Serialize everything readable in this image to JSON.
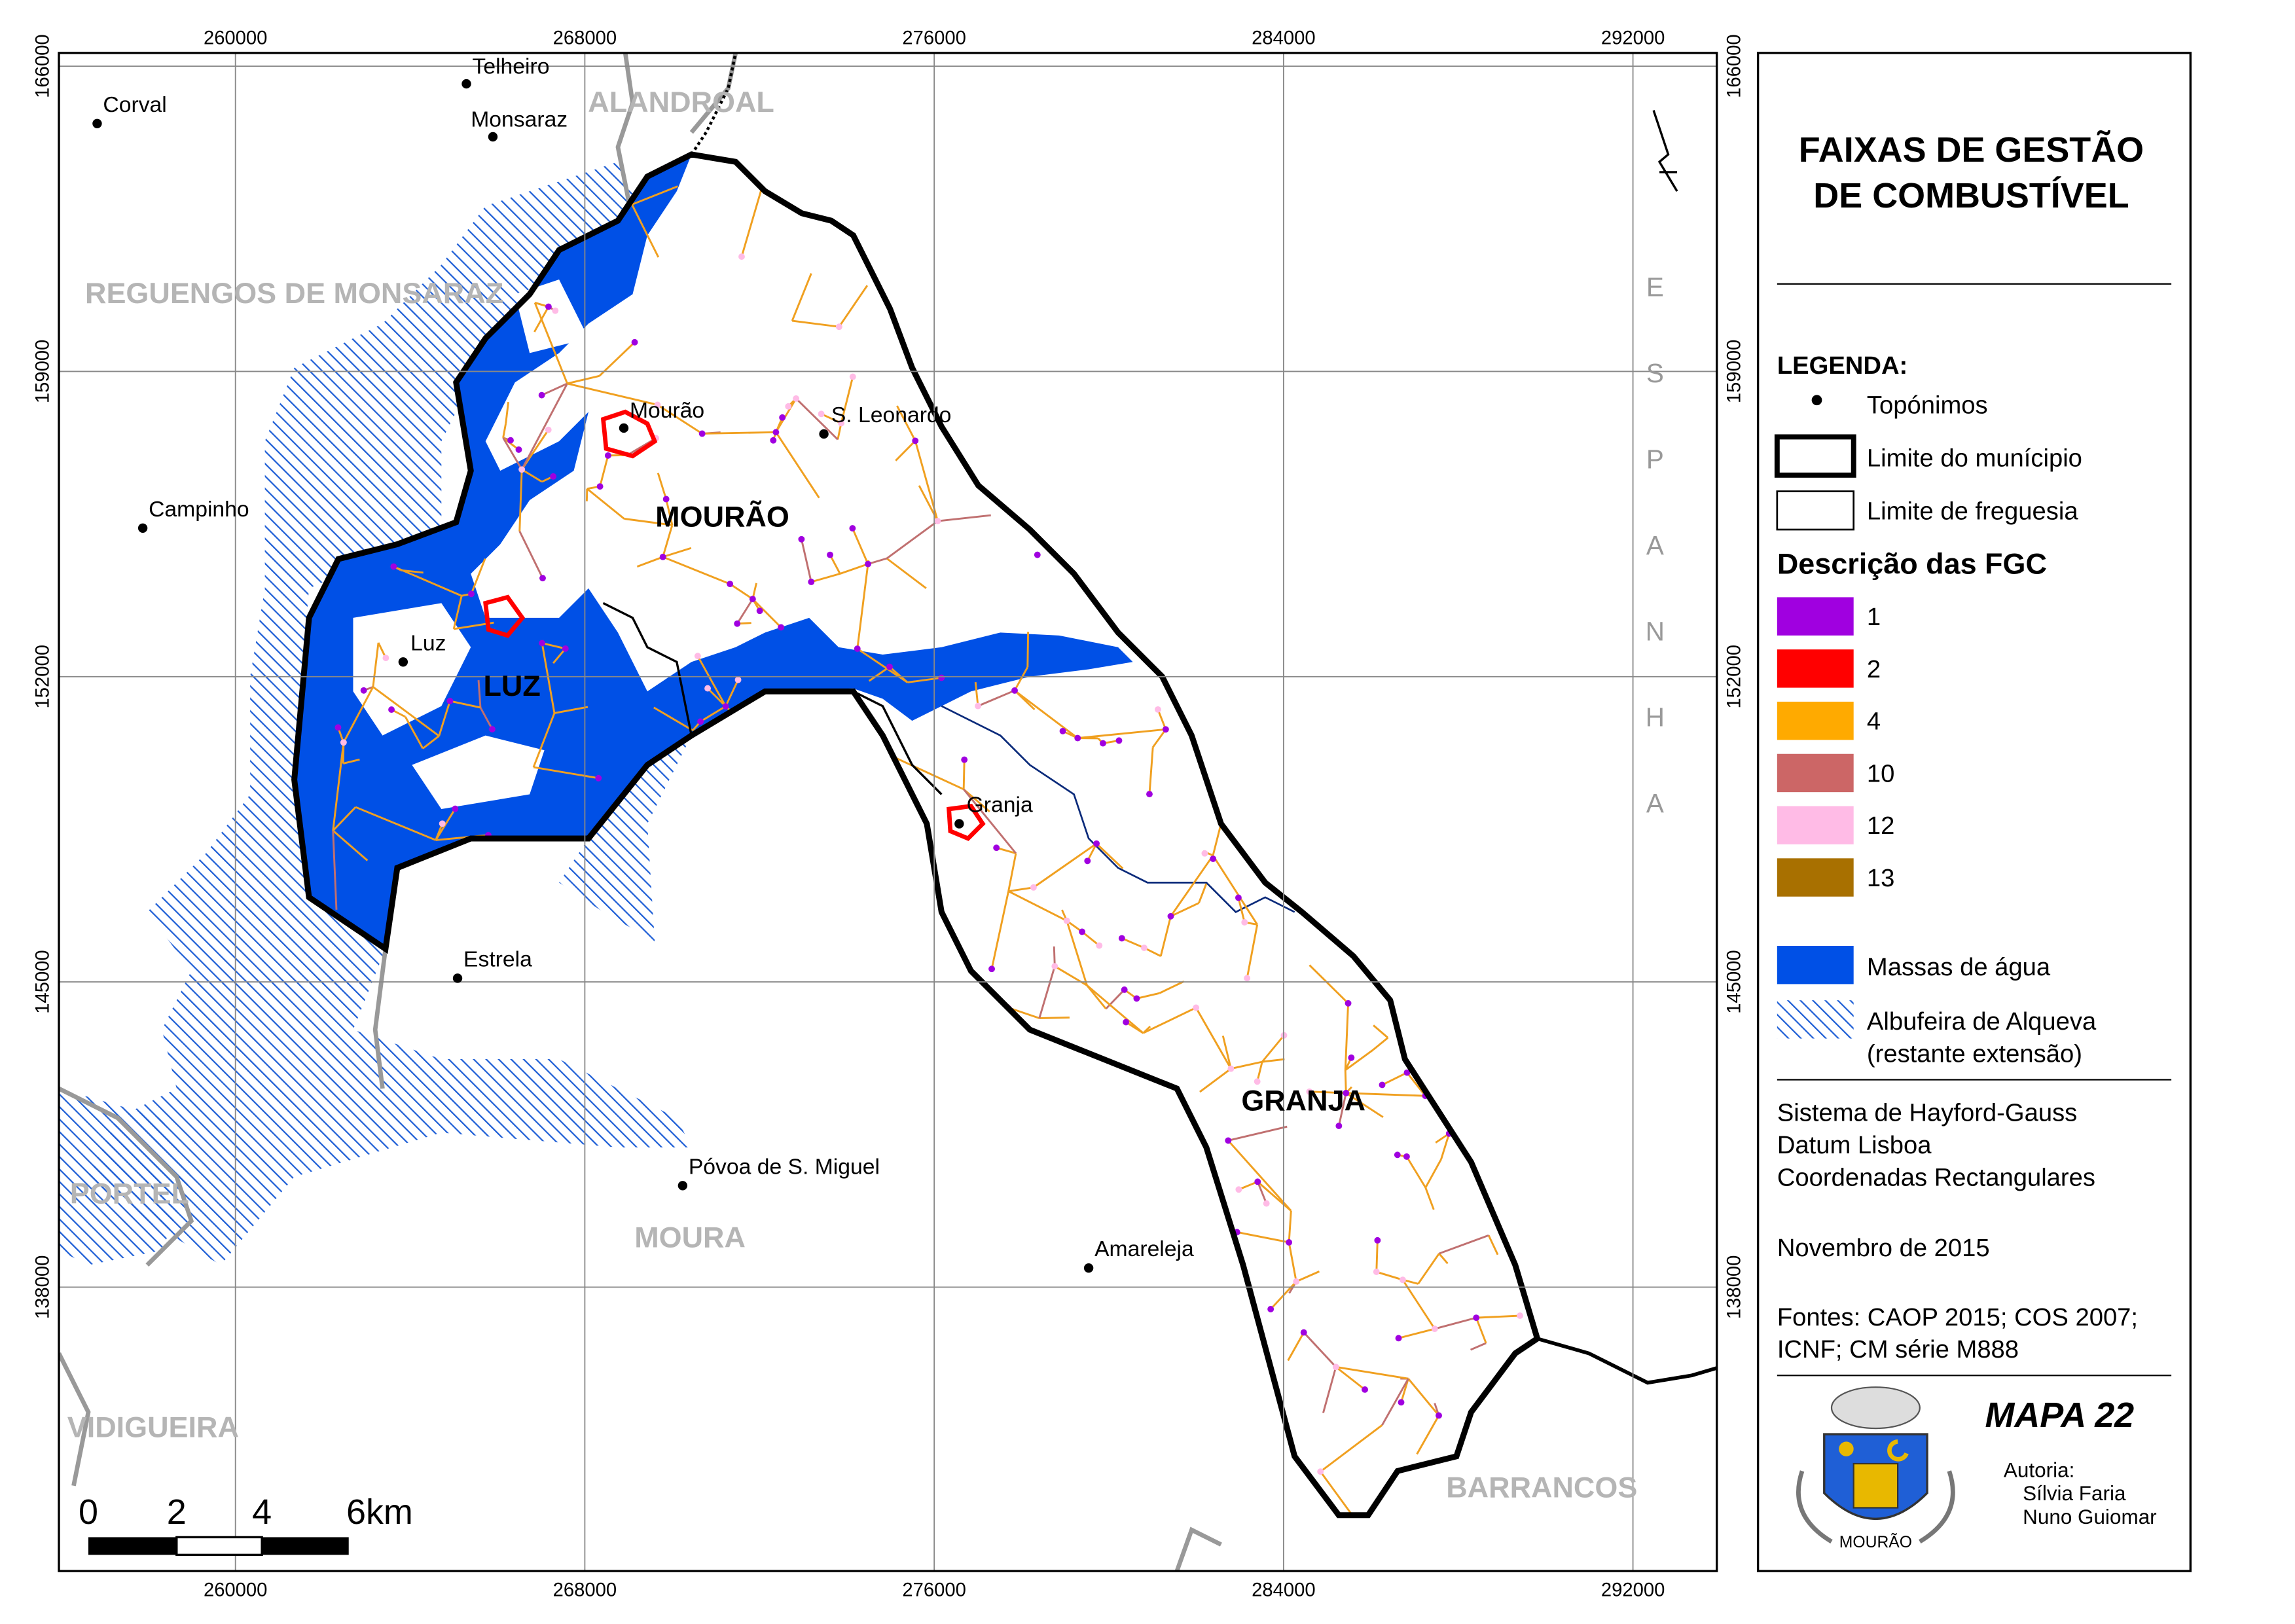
{
  "map": {
    "grid": {
      "x_ticks": [
        260000,
        268000,
        276000,
        284000,
        292000
      ],
      "y_ticks": [
        166000,
        159000,
        152000,
        145000,
        138000
      ]
    },
    "places": [
      "Corval",
      "Telheiro",
      "Monsaraz",
      "Mourão",
      "S. Leonardo",
      "Campinho",
      "Luz",
      "Granja",
      "Estrela",
      "Póvoa de S. Miguel",
      "Amareleja"
    ],
    "regions": [
      "ALANDROAL",
      "REGUENGOS DE MONSARAZ",
      "PORTEL",
      "VIDIGUEIRA",
      "MOURA",
      "BARRANCOS"
    ],
    "parishes": [
      "MOURÃO",
      "LUZ",
      "GRANJA"
    ],
    "country": "ESPANHA",
    "scale_bar": [
      "0",
      "2",
      "4",
      "6km"
    ]
  },
  "legend": {
    "title": [
      "FAIXAS DE GESTÃO",
      "DE COMBUSTÍVEL"
    ],
    "heading": "LEGENDA:",
    "symbols": [
      "Topónimos",
      "Limite do munícipio",
      "Limite de freguesia"
    ],
    "fgc_heading": "Descrição das FGC",
    "fgc": [
      {
        "label": "1",
        "color": "#a000e0"
      },
      {
        "label": "2",
        "color": "#ff0000"
      },
      {
        "label": "4",
        "color": "#ffaa00"
      },
      {
        "label": "10",
        "color": "#cc6666"
      },
      {
        "label": "12",
        "color": "#ffbbe6"
      },
      {
        "label": "13",
        "color": "#a87000"
      }
    ],
    "water": {
      "label": "Massas de água",
      "color": "#0050e6"
    },
    "reservoir": [
      "Albufeira de Alqueva",
      "(restante extensão)"
    ],
    "projection": [
      "Sistema de Hayford-Gauss",
      "Datum Lisboa",
      "Coordenadas Rectangulares"
    ],
    "date": "Novembro de 2015",
    "sources": [
      "Fontes: CAOP 2015; COS 2007;",
      "ICNF; CM série M888"
    ],
    "map_number": "MAPA 22",
    "authorship": {
      "heading": "Autoria:",
      "names": [
        "Sílvia Faria",
        "Nuno Guiomar"
      ]
    },
    "crest": "MOURÃO"
  }
}
